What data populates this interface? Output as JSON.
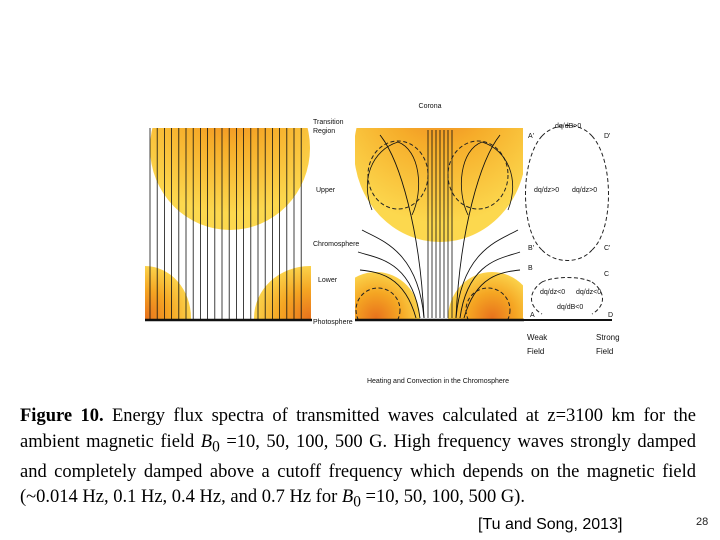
{
  "diagram": {
    "labels": {
      "corona": "Corona",
      "transition_region": [
        "Transition",
        "Region"
      ],
      "upper": "Upper",
      "chromosphere": "Chromosphere",
      "lower": "Lower",
      "photosphere": "Photosphere",
      "bottom_caption": "Heating and Convection in the Chromosphere",
      "weak_field": [
        "Weak",
        "Field"
      ],
      "strong_field": [
        "Strong",
        "Field"
      ]
    },
    "loop_labels": {
      "top_dq": "dq/dB>0",
      "a_prime": "A'",
      "d_prime": "D'",
      "left_dq": "dq/dz>0",
      "right_dq": "dq/dz>0",
      "b_prime": "B'",
      "c_prime": "C'",
      "b": "B",
      "c": "C",
      "bottom_dq": "dq/dB<0",
      "mid_left_dq": "dq/dz<0",
      "mid_right_dq": "dq/dz<0",
      "a": "A",
      "d": "D"
    }
  },
  "caption": {
    "figure_label": "Figure 10.",
    "text_1": " Energy flux spectra of transmitted waves calculated at z=3100 km for the ambient magnetic field ",
    "b": "B",
    "sub_0": "0",
    "text_2": " =10, 50, 100, 500 G. High frequency waves strongly damped and completely damped above a cutoff frequency which depends on the magnetic field (~0.014 Hz, 0.1 Hz, 0.4 Hz, and 0.7 Hz for ",
    "text_3": " =10, 50, 100, 500 G)."
  },
  "citation": "[Tu and Song, 2013]",
  "page_number": "28"
}
